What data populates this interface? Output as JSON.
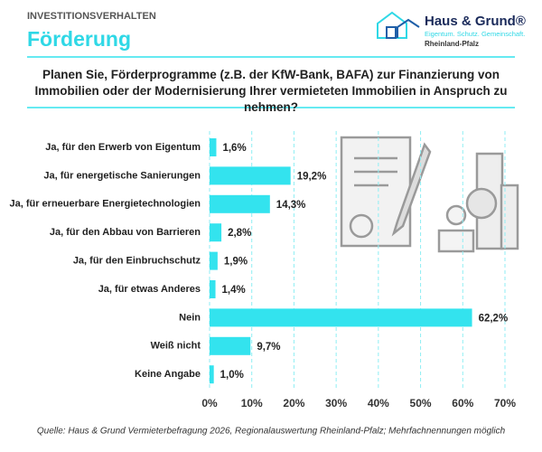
{
  "header": {
    "kicker": "INVESTITIONSVERHALTEN",
    "title": "Förderung",
    "logo_name": "Haus & Grund®",
    "logo_slogan": "Eigentum. Schutz. Gemeinschaft.",
    "logo_region": "Rheinland-Pfalz"
  },
  "chart_data": {
    "type": "bar",
    "orientation": "horizontal",
    "title": "Planen Sie, Förderprogramme (z.B. der KfW-Bank, BAFA) zur Finanzierung von Immobilien oder der Modernisierung Ihrer vermieteten Immobilien in Anspruch zu nehmen?",
    "categories": [
      "Ja, für den Erwerb von Eigentum",
      "Ja, für energetische Sanierungen",
      "Ja, für erneuerbare Energietechnologien",
      "Ja, für den Abbau von Barrieren",
      "Ja, für den Einbruchschutz",
      "Ja, für etwas Anderes",
      "Nein",
      "Weiß nicht",
      "Keine Angabe"
    ],
    "values": [
      1.6,
      19.2,
      14.3,
      2.8,
      1.9,
      1.4,
      62.2,
      9.7,
      1.0
    ],
    "value_labels": [
      "1,6%",
      "19,2%",
      "14,3%",
      "2,8%",
      "1,9%",
      "1,4%",
      "62,2%",
      "9,7%",
      "1,0%"
    ],
    "color": "#33e3ee",
    "xlim": [
      0,
      70
    ],
    "xticks": [
      {
        "value": 0,
        "label": "0%"
      },
      {
        "value": 10,
        "label": "10%"
      },
      {
        "value": 20,
        "label": "20%"
      },
      {
        "value": 30,
        "label": "30%"
      },
      {
        "value": 40,
        "label": "40%"
      },
      {
        "value": 50,
        "label": "50%"
      },
      {
        "value": 60,
        "label": "60%"
      },
      {
        "value": 70,
        "label": "70%"
      }
    ],
    "grid": true
  },
  "source": "Quelle: Haus & Grund Vermieterbefragung 2026, Regionalauswertung Rheinland-Pfalz; Mehrfachnennungen möglich"
}
